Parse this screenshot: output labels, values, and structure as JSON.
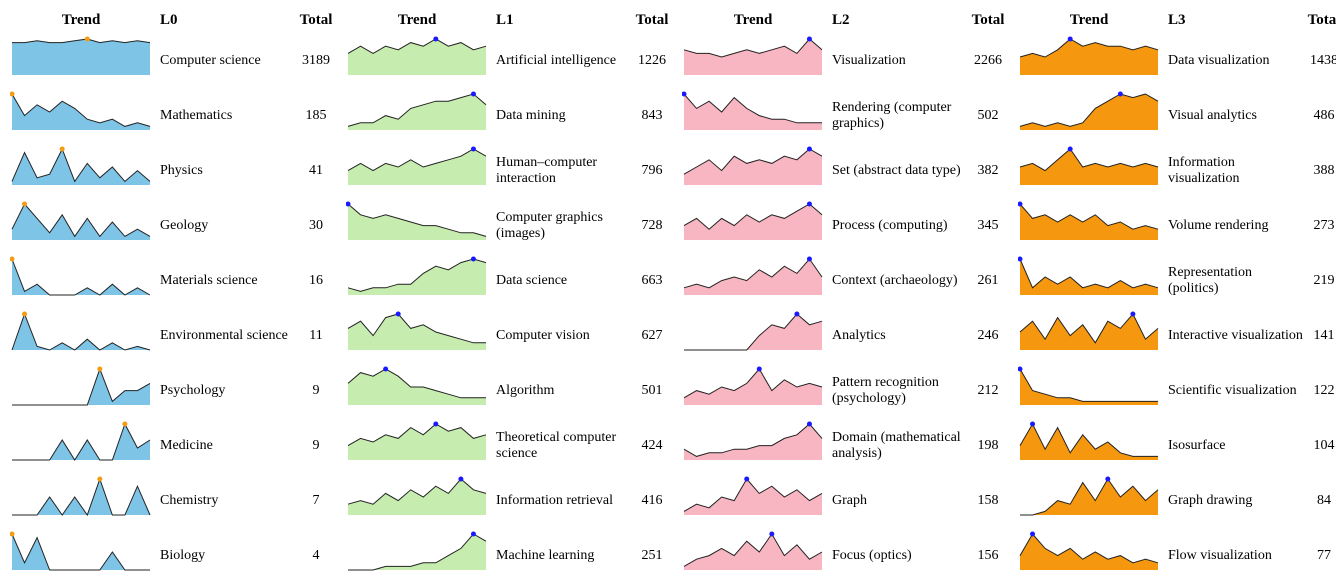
{
  "groups": [
    {
      "trend_header": "Trend",
      "header": "L0",
      "total_header": "Total",
      "fill": "#7ec4e6",
      "dot": "#f39c12",
      "rows": [
        {
          "label": "Computer science",
          "total": 3189,
          "trend": [
            9,
            9,
            9.5,
            9,
            9,
            9.5,
            10,
            9,
            9.5,
            9,
            9.5,
            9
          ]
        },
        {
          "label": "Mathematics",
          "total": 185,
          "trend": [
            10,
            4,
            7,
            5,
            8,
            6,
            3,
            2,
            3,
            1,
            2,
            1
          ]
        },
        {
          "label": "Physics",
          "total": 41,
          "trend": [
            1,
            9,
            2,
            3,
            10,
            1,
            6,
            2,
            5,
            1,
            4,
            1
          ]
        },
        {
          "label": "Geology",
          "total": 30,
          "trend": [
            3,
            10,
            6,
            2,
            7,
            1,
            6,
            1,
            5,
            1,
            3,
            1
          ]
        },
        {
          "label": "Materials science",
          "total": 16,
          "trend": [
            10,
            1,
            3,
            0,
            0,
            0,
            2,
            0,
            3,
            0,
            2,
            0
          ]
        },
        {
          "label": "Environmental science",
          "total": 11,
          "trend": [
            0,
            10,
            1,
            0,
            2,
            0,
            3,
            0,
            2,
            0,
            1,
            0
          ]
        },
        {
          "label": "Psychology",
          "total": 9,
          "trend": [
            0,
            0,
            0,
            0,
            0,
            0,
            0,
            10,
            1,
            4,
            4,
            6
          ]
        },
        {
          "label": "Medicine",
          "total": 9,
          "trend": [
            0,
            0,
            0,
            0,
            5,
            0,
            5,
            0,
            0,
            9,
            3,
            5
          ]
        },
        {
          "label": "Chemistry",
          "total": 7,
          "trend": [
            0,
            0,
            0,
            5,
            0,
            5,
            0,
            10,
            0,
            0,
            8,
            0
          ]
        },
        {
          "label": "Biology",
          "total": 4,
          "trend": [
            10,
            2,
            9,
            0,
            0,
            0,
            0,
            0,
            5,
            0,
            0,
            0
          ]
        }
      ]
    },
    {
      "trend_header": "Trend",
      "header": "L1",
      "total_header": "Total",
      "fill": "#c6ecb0",
      "dot": "#1a1aff",
      "rows": [
        {
          "label": "Artificial intelligence",
          "total": 1226,
          "trend": [
            6,
            8,
            6,
            8,
            7,
            9,
            8,
            10,
            8,
            9,
            7,
            8
          ]
        },
        {
          "label": "Data mining",
          "total": 843,
          "trend": [
            1,
            2,
            2,
            4,
            3,
            6,
            7,
            8,
            8,
            9,
            10,
            7
          ]
        },
        {
          "label": "Human–computer interaction",
          "total": 796,
          "trend": [
            4,
            6,
            4,
            6,
            5,
            7,
            5,
            6,
            7,
            8,
            10,
            8
          ]
        },
        {
          "label": "Computer graphics (images)",
          "total": 728,
          "trend": [
            10,
            7,
            6,
            7,
            6,
            5,
            4,
            4,
            3,
            2,
            2,
            1
          ]
        },
        {
          "label": "Data science",
          "total": 663,
          "trend": [
            2,
            1,
            2,
            2,
            3,
            3,
            6,
            8,
            7,
            9,
            10,
            9
          ]
        },
        {
          "label": "Computer vision",
          "total": 627,
          "trend": [
            6,
            8,
            4,
            9,
            10,
            6,
            7,
            5,
            4,
            3,
            2,
            2
          ]
        },
        {
          "label": "Algorithm",
          "total": 501,
          "trend": [
            6,
            9,
            8,
            10,
            8,
            5,
            5,
            4,
            3,
            2,
            2,
            2
          ]
        },
        {
          "label": "Theoretical computer science",
          "total": 424,
          "trend": [
            4,
            6,
            5,
            7,
            6,
            9,
            7,
            10,
            8,
            9,
            6,
            7
          ]
        },
        {
          "label": "Information retrieval",
          "total": 416,
          "trend": [
            3,
            4,
            3,
            6,
            4,
            7,
            5,
            8,
            6,
            10,
            7,
            6
          ]
        },
        {
          "label": "Machine learning",
          "total": 251,
          "trend": [
            0,
            0,
            0,
            1,
            1,
            1,
            2,
            2,
            4,
            6,
            10,
            8
          ]
        }
      ]
    },
    {
      "trend_header": "Trend",
      "header": "L2",
      "total_header": "Total",
      "fill": "#f7b6c2",
      "dot": "#1a1aff",
      "rows": [
        {
          "label": "Visualization",
          "total": 2266,
          "trend": [
            7,
            6,
            6,
            5,
            6,
            7,
            6,
            7,
            8,
            6,
            10,
            7
          ]
        },
        {
          "label": "Rendering (computer graphics)",
          "total": 502,
          "trend": [
            10,
            6,
            8,
            5,
            9,
            6,
            4,
            3,
            3,
            2,
            2,
            2
          ]
        },
        {
          "label": "Set (abstract data type)",
          "total": 382,
          "trend": [
            3,
            5,
            7,
            4,
            8,
            6,
            7,
            6,
            8,
            7,
            10,
            8
          ]
        },
        {
          "label": "Process (computing)",
          "total": 345,
          "trend": [
            4,
            6,
            3,
            6,
            4,
            7,
            5,
            7,
            6,
            8,
            10,
            7
          ]
        },
        {
          "label": "Context (archaeology)",
          "total": 261,
          "trend": [
            2,
            3,
            2,
            4,
            5,
            4,
            7,
            5,
            8,
            6,
            10,
            5
          ]
        },
        {
          "label": "Analytics",
          "total": 246,
          "trend": [
            0,
            0,
            0,
            0,
            0,
            0,
            4,
            7,
            6,
            10,
            7,
            8
          ]
        },
        {
          "label": "Pattern recognition (psychology)",
          "total": 212,
          "trend": [
            2,
            4,
            3,
            5,
            4,
            6,
            10,
            4,
            7,
            5,
            6,
            5
          ]
        },
        {
          "label": "Domain (mathematical analysis)",
          "total": 198,
          "trend": [
            3,
            1,
            2,
            2,
            3,
            3,
            4,
            4,
            6,
            7,
            10,
            6
          ]
        },
        {
          "label": "Graph",
          "total": 158,
          "trend": [
            1,
            3,
            2,
            5,
            4,
            10,
            6,
            8,
            5,
            7,
            4,
            6
          ]
        },
        {
          "label": "Focus (optics)",
          "total": 156,
          "trend": [
            1,
            3,
            4,
            6,
            4,
            8,
            5,
            10,
            4,
            7,
            3,
            5
          ]
        }
      ]
    },
    {
      "trend_header": "Trend",
      "header": "L3",
      "total_header": "Total",
      "fill": "#f5980f",
      "dot": "#1a1aff",
      "rows": [
        {
          "label": "Data visualization",
          "total": 1438,
          "trend": [
            5,
            6,
            5,
            7,
            10,
            8,
            9,
            8,
            8,
            7,
            8,
            7
          ]
        },
        {
          "label": "Visual analytics",
          "total": 486,
          "trend": [
            1,
            2,
            1,
            2,
            1,
            2,
            6,
            8,
            10,
            9,
            10,
            8
          ]
        },
        {
          "label": "Information visualization",
          "total": 388,
          "trend": [
            5,
            6,
            4,
            7,
            10,
            5,
            6,
            5,
            6,
            5,
            6,
            5
          ]
        },
        {
          "label": "Volume rendering",
          "total": 273,
          "trend": [
            10,
            6,
            7,
            5,
            7,
            5,
            7,
            4,
            5,
            3,
            4,
            3
          ]
        },
        {
          "label": "Representation (politics)",
          "total": 219,
          "trend": [
            10,
            2,
            5,
            3,
            5,
            2,
            3,
            2,
            4,
            2,
            3,
            2
          ]
        },
        {
          "label": "Interactive visualization",
          "total": 141,
          "trend": [
            5,
            8,
            3,
            9,
            4,
            7,
            2,
            8,
            6,
            10,
            3,
            6
          ]
        },
        {
          "label": "Scientific visualization",
          "total": 122,
          "trend": [
            10,
            4,
            3,
            2,
            2,
            1,
            1,
            1,
            1,
            1,
            1,
            1
          ]
        },
        {
          "label": "Isosurface",
          "total": 104,
          "trend": [
            4,
            10,
            3,
            9,
            2,
            7,
            3,
            5,
            2,
            1,
            1,
            1
          ]
        },
        {
          "label": "Graph drawing",
          "total": 84,
          "trend": [
            0,
            0,
            1,
            4,
            3,
            9,
            4,
            10,
            5,
            8,
            4,
            7
          ]
        },
        {
          "label": "Flow visualization",
          "total": 77,
          "trend": [
            4,
            10,
            6,
            4,
            6,
            3,
            5,
            3,
            4,
            2,
            3,
            2
          ]
        }
      ]
    }
  ]
}
